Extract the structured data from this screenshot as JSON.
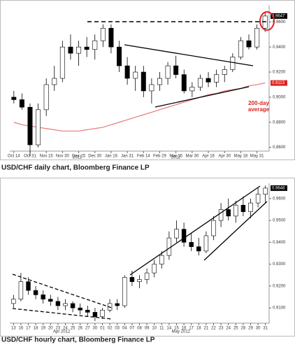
{
  "chart_data": [
    {
      "type": "candlestick",
      "categories": [
        "Oct 14",
        null,
        "Oct 31",
        null,
        "Nov 15",
        null,
        "Nov 30",
        null,
        "Dec 15",
        null,
        "Dec 30",
        null,
        "Jan 16",
        null,
        "Jan 31",
        null,
        "Feb 14",
        null,
        "Feb 29",
        null,
        "Mar 15",
        null,
        "Mar 30",
        null,
        "Apr 16",
        null,
        "Apr 30",
        null,
        "May 18",
        null,
        "May 31",
        null
      ],
      "period_labels": [
        "2011",
        "2012"
      ],
      "open": [
        0.9,
        0.898,
        0.892,
        0.862,
        0.89,
        0.91,
        0.915,
        0.94,
        0.935,
        0.94,
        0.938,
        0.945,
        0.955,
        0.94,
        0.925,
        0.915,
        0.92,
        0.905,
        0.91,
        0.915,
        0.925,
        0.918,
        0.905,
        0.908,
        0.915,
        0.912,
        0.918,
        0.922,
        0.932,
        0.945,
        0.94,
        0.955
      ],
      "high": [
        0.905,
        0.903,
        0.895,
        0.895,
        0.915,
        0.925,
        0.945,
        0.95,
        0.945,
        0.948,
        0.95,
        0.958,
        0.958,
        0.945,
        0.932,
        0.925,
        0.925,
        0.915,
        0.92,
        0.928,
        0.933,
        0.922,
        0.912,
        0.918,
        0.92,
        0.922,
        0.925,
        0.935,
        0.948,
        0.95,
        0.958,
        0.968
      ],
      "low": [
        0.895,
        0.89,
        0.853,
        0.86,
        0.885,
        0.905,
        0.912,
        0.93,
        0.925,
        0.932,
        0.93,
        0.94,
        0.935,
        0.92,
        0.91,
        0.905,
        0.9,
        0.895,
        0.905,
        0.91,
        0.915,
        0.903,
        0.9,
        0.905,
        0.908,
        0.908,
        0.912,
        0.92,
        0.93,
        0.938,
        0.938,
        0.952
      ],
      "close": [
        0.898,
        0.892,
        0.862,
        0.89,
        0.91,
        0.915,
        0.94,
        0.935,
        0.94,
        0.938,
        0.945,
        0.955,
        0.94,
        0.925,
        0.915,
        0.92,
        0.905,
        0.91,
        0.915,
        0.925,
        0.918,
        0.905,
        0.908,
        0.915,
        0.912,
        0.918,
        0.922,
        0.932,
        0.945,
        0.94,
        0.955,
        0.9647
      ],
      "ma": {
        "color": "#e87a7a",
        "values": [
          0.88,
          0.878,
          0.877,
          0.876,
          0.875,
          0.874,
          0.873,
          0.873,
          0.873,
          0.874,
          0.875,
          0.876,
          0.878,
          0.88,
          0.882,
          0.884,
          0.886,
          0.888,
          0.89,
          0.892,
          0.894,
          0.896,
          0.898,
          0.9,
          0.902,
          0.903,
          0.905,
          0.906,
          0.907,
          0.909,
          0.91,
          0.9113
        ]
      },
      "annotation": [
        "200-day",
        "average"
      ],
      "up_color": "#ffffff",
      "down_color": "#000000",
      "ylim": [
        0.857,
        0.973
      ],
      "yticks": [
        {
          "value": 0.86,
          "label": "0.8600"
        },
        {
          "value": 0.88,
          "label": "0.8800"
        },
        {
          "value": 0.9,
          "label": "0.9000"
        },
        {
          "value": 0.92,
          "label": "0.9200"
        },
        {
          "value": 0.94,
          "label": "0.9400"
        },
        {
          "value": 0.96,
          "label": "0.9600"
        }
      ],
      "caption": "USD/CHF daily chart, Bloomberg Finance LP"
    },
    {
      "type": "candlestick",
      "categories": [
        "13",
        "16",
        "17",
        "18",
        "19",
        "20",
        "23",
        "24",
        "25",
        "26",
        "27",
        "30",
        "01",
        "02",
        "03",
        "04",
        "07",
        "08",
        "09",
        "10",
        "11",
        "14",
        "15",
        "16",
        "17",
        "18",
        "21",
        "22",
        "23",
        "24",
        "25",
        "28",
        "29",
        "30",
        "31"
      ],
      "period_labels": [
        "Apr 2012",
        "May 2012"
      ],
      "open": [
        0.912,
        0.914,
        0.922,
        0.918,
        0.916,
        0.914,
        0.913,
        0.911,
        0.912,
        0.91,
        0.909,
        0.908,
        0.906,
        0.909,
        0.912,
        0.911,
        0.924,
        0.922,
        0.923,
        0.926,
        0.93,
        0.934,
        0.942,
        0.946,
        0.94,
        0.938,
        0.936,
        0.943,
        0.95,
        0.955,
        0.952,
        0.957,
        0.954,
        0.958,
        0.962
      ],
      "high": [
        0.916,
        0.926,
        0.924,
        0.92,
        0.918,
        0.916,
        0.915,
        0.914,
        0.913,
        0.912,
        0.911,
        0.91,
        0.91,
        0.914,
        0.914,
        0.925,
        0.927,
        0.925,
        0.928,
        0.932,
        0.936,
        0.945,
        0.95,
        0.949,
        0.944,
        0.942,
        0.945,
        0.952,
        0.958,
        0.96,
        0.959,
        0.961,
        0.96,
        0.965,
        0.966
      ],
      "low": [
        0.91,
        0.913,
        0.916,
        0.914,
        0.912,
        0.911,
        0.909,
        0.909,
        0.908,
        0.907,
        0.906,
        0.904,
        0.905,
        0.908,
        0.909,
        0.91,
        0.92,
        0.919,
        0.921,
        0.924,
        0.928,
        0.932,
        0.94,
        0.938,
        0.936,
        0.934,
        0.935,
        0.941,
        0.947,
        0.95,
        0.949,
        0.952,
        0.951,
        0.956,
        0.958
      ],
      "close": [
        0.914,
        0.922,
        0.918,
        0.916,
        0.914,
        0.913,
        0.911,
        0.912,
        0.91,
        0.909,
        0.908,
        0.906,
        0.909,
        0.912,
        0.911,
        0.924,
        0.922,
        0.923,
        0.926,
        0.93,
        0.934,
        0.942,
        0.946,
        0.94,
        0.938,
        0.936,
        0.943,
        0.95,
        0.955,
        0.952,
        0.957,
        0.954,
        0.958,
        0.962,
        0.9648
      ],
      "up_color": "#ffffff",
      "down_color": "#000000",
      "ylim": [
        0.903,
        0.967
      ],
      "yticks": [
        {
          "value": 0.91,
          "label": "0.9100"
        },
        {
          "value": 0.92,
          "label": "0.9200"
        },
        {
          "value": 0.93,
          "label": "0.9300"
        },
        {
          "value": 0.94,
          "label": "0.9400"
        },
        {
          "value": 0.95,
          "label": "0.9500"
        },
        {
          "value": 0.96,
          "label": "0.9600"
        }
      ],
      "caption": "USD/CHF hourly chart, Bloomberg Finance LP"
    }
  ]
}
